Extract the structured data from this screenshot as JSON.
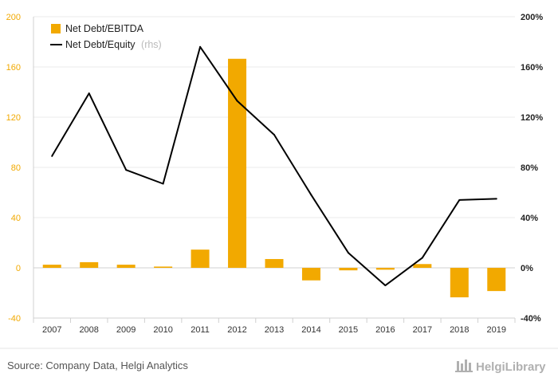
{
  "chart_data": {
    "type": "bar",
    "categories": [
      "2007",
      "2008",
      "2009",
      "2010",
      "2011",
      "2012",
      "2013",
      "2014",
      "2015",
      "2016",
      "2017",
      "2018",
      "2019"
    ],
    "series": [
      {
        "name": "Net Debt/EBITDA",
        "type": "bar",
        "axis": "left",
        "color": "#f2a900",
        "values": [
          2.5,
          4.5,
          2.5,
          1.0,
          14.5,
          166.5,
          7.0,
          -10.0,
          -2.0,
          -1.5,
          3.0,
          -23.5,
          -18.5
        ]
      },
      {
        "name": "Net Debt/Equity",
        "name_note": "(rhs)",
        "type": "line",
        "axis": "right",
        "color": "#000000",
        "values": [
          89,
          139,
          78,
          67,
          176,
          133,
          106,
          58,
          12,
          -14,
          8,
          54,
          55
        ]
      }
    ],
    "ylim_left": [
      -40,
      200
    ],
    "yticks_left": [
      "-40",
      "0",
      "40",
      "80",
      "120",
      "160",
      "200"
    ],
    "ylim_right": [
      -40,
      200
    ],
    "yticks_right": [
      "-40%",
      "0%",
      "40%",
      "80%",
      "120%",
      "160%",
      "200%"
    ],
    "grid": true,
    "legend_position": "top-left",
    "title": "",
    "xlabel": "",
    "ylabel": ""
  },
  "footer": {
    "source": "Source: Company Data, Helgi Analytics",
    "brand": "HelgiLibrary"
  }
}
